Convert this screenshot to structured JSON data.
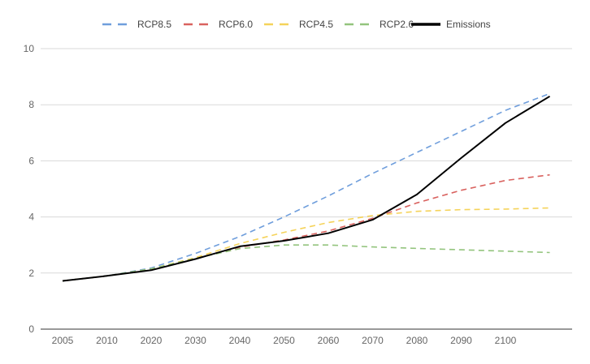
{
  "chart_data": {
    "type": "line",
    "title": "",
    "xlabel": "",
    "ylabel": "",
    "ylim": [
      0,
      10
    ],
    "y_ticks": [
      "0",
      "2",
      "4",
      "6",
      "8",
      "10"
    ],
    "x_ticks": [
      "2005",
      "2010",
      "2020",
      "2030",
      "2040",
      "2050",
      "2060",
      "2070",
      "2080",
      "2090",
      "2100"
    ],
    "grid": "horizontal",
    "legend_position": "top",
    "series": [
      {
        "name": "RCP8.5",
        "color": "#6f9edc",
        "dash": true,
        "values": [
          1.72,
          1.9,
          2.18,
          2.7,
          3.3,
          4.0,
          4.75,
          5.55,
          6.3,
          7.05,
          7.8,
          8.4
        ]
      },
      {
        "name": "RCP6.0",
        "color": "#d9625f",
        "dash": true,
        "values": [
          1.72,
          1.9,
          2.12,
          2.52,
          2.92,
          3.18,
          3.5,
          3.95,
          4.5,
          4.95,
          5.3,
          5.5
        ]
      },
      {
        "name": "RCP4.5",
        "color": "#f5d35a",
        "dash": true,
        "values": [
          1.72,
          1.9,
          2.15,
          2.55,
          3.05,
          3.45,
          3.8,
          4.05,
          4.2,
          4.26,
          4.28,
          4.32
        ]
      },
      {
        "name": "RCP2.6",
        "color": "#93c47d",
        "dash": true,
        "values": [
          1.72,
          1.9,
          2.15,
          2.52,
          2.87,
          3.0,
          3.0,
          2.93,
          2.88,
          2.83,
          2.78,
          2.73
        ]
      },
      {
        "name": "Emissions",
        "color": "#000000",
        "dash": false,
        "values": [
          1.72,
          1.9,
          2.1,
          2.5,
          2.95,
          3.15,
          3.42,
          3.9,
          4.8,
          6.1,
          7.35,
          8.3
        ]
      }
    ]
  }
}
